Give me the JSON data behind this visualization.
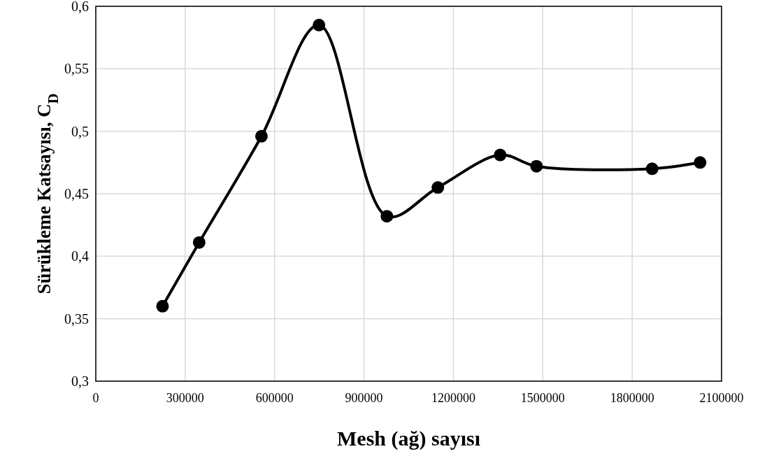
{
  "chart_data": {
    "type": "line",
    "xlabel": "Mesh (ağ) sayısı",
    "ylabel": "Sürükleme Katsayısı, C$_{D}$",
    "x": [
      224000,
      347000,
      556000,
      749000,
      977000,
      1148000,
      1357000,
      1479000,
      1867000,
      2028000
    ],
    "series": [
      {
        "color": "#000000",
        "values": [
          0.36,
          0.411,
          0.496,
          0.585,
          0.432,
          0.455,
          0.481,
          0.472,
          0.47,
          0.475
        ]
      }
    ],
    "xlim": [
      0,
      2100000
    ],
    "xticks": [
      0,
      300000,
      600000,
      900000,
      1200000,
      1500000,
      1800000,
      2100000
    ],
    "ylim": [
      0.3,
      0.6
    ],
    "yticks": [
      {
        "value": 0.3,
        "label": "0,3"
      },
      {
        "value": 0.35,
        "label": "0,35"
      },
      {
        "value": 0.4,
        "label": "0,4"
      },
      {
        "value": 0.45,
        "label": "0,45"
      },
      {
        "value": 0.5,
        "label": "0,5"
      },
      {
        "value": 0.55,
        "label": "0,55"
      },
      {
        "value": 0.6,
        "label": "0,6"
      }
    ],
    "grid": true,
    "marker": "circle",
    "line_style": "solid"
  }
}
